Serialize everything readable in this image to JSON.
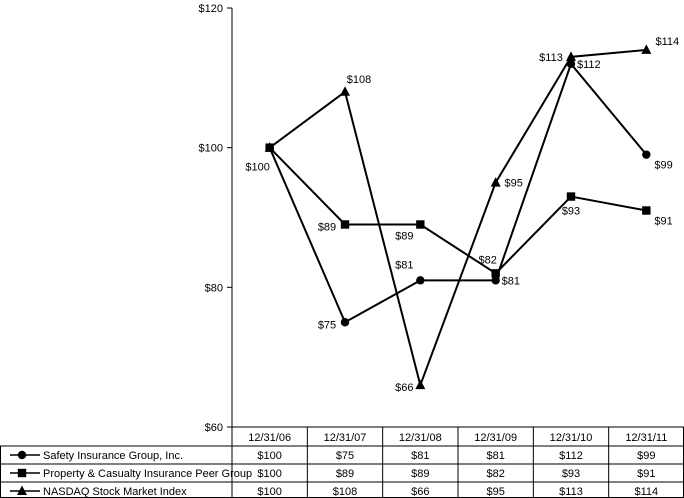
{
  "chart_data": {
    "type": "line",
    "categories": [
      "12/31/06",
      "12/31/07",
      "12/31/08",
      "12/31/09",
      "12/31/10",
      "12/31/11"
    ],
    "ylim": [
      60,
      120
    ],
    "yticks": [
      60,
      80,
      100,
      120
    ],
    "ytick_labels": [
      "$60",
      "$80",
      "$100",
      "$120"
    ],
    "grid": false,
    "legend": "table below chart",
    "series": [
      {
        "name": "Safety Insurance Group, Inc.",
        "marker": "circle",
        "values": [
          100,
          75,
          81,
          81,
          112,
          99
        ],
        "labels": [
          "$100",
          "$75",
          "$81",
          "$81",
          "$112",
          "$99"
        ]
      },
      {
        "name": "Property & Casualty Insurance Peer Group",
        "marker": "square",
        "values": [
          100,
          89,
          89,
          82,
          93,
          91
        ],
        "labels": [
          "$100",
          "$89",
          "$89",
          "$82",
          "$93",
          "$91"
        ]
      },
      {
        "name": "NASDAQ Stock Market Index",
        "marker": "triangle",
        "values": [
          100,
          108,
          66,
          95,
          113,
          114
        ],
        "labels": [
          "$100",
          "$108",
          "$66",
          "$95",
          "$113",
          "$114"
        ]
      }
    ]
  }
}
